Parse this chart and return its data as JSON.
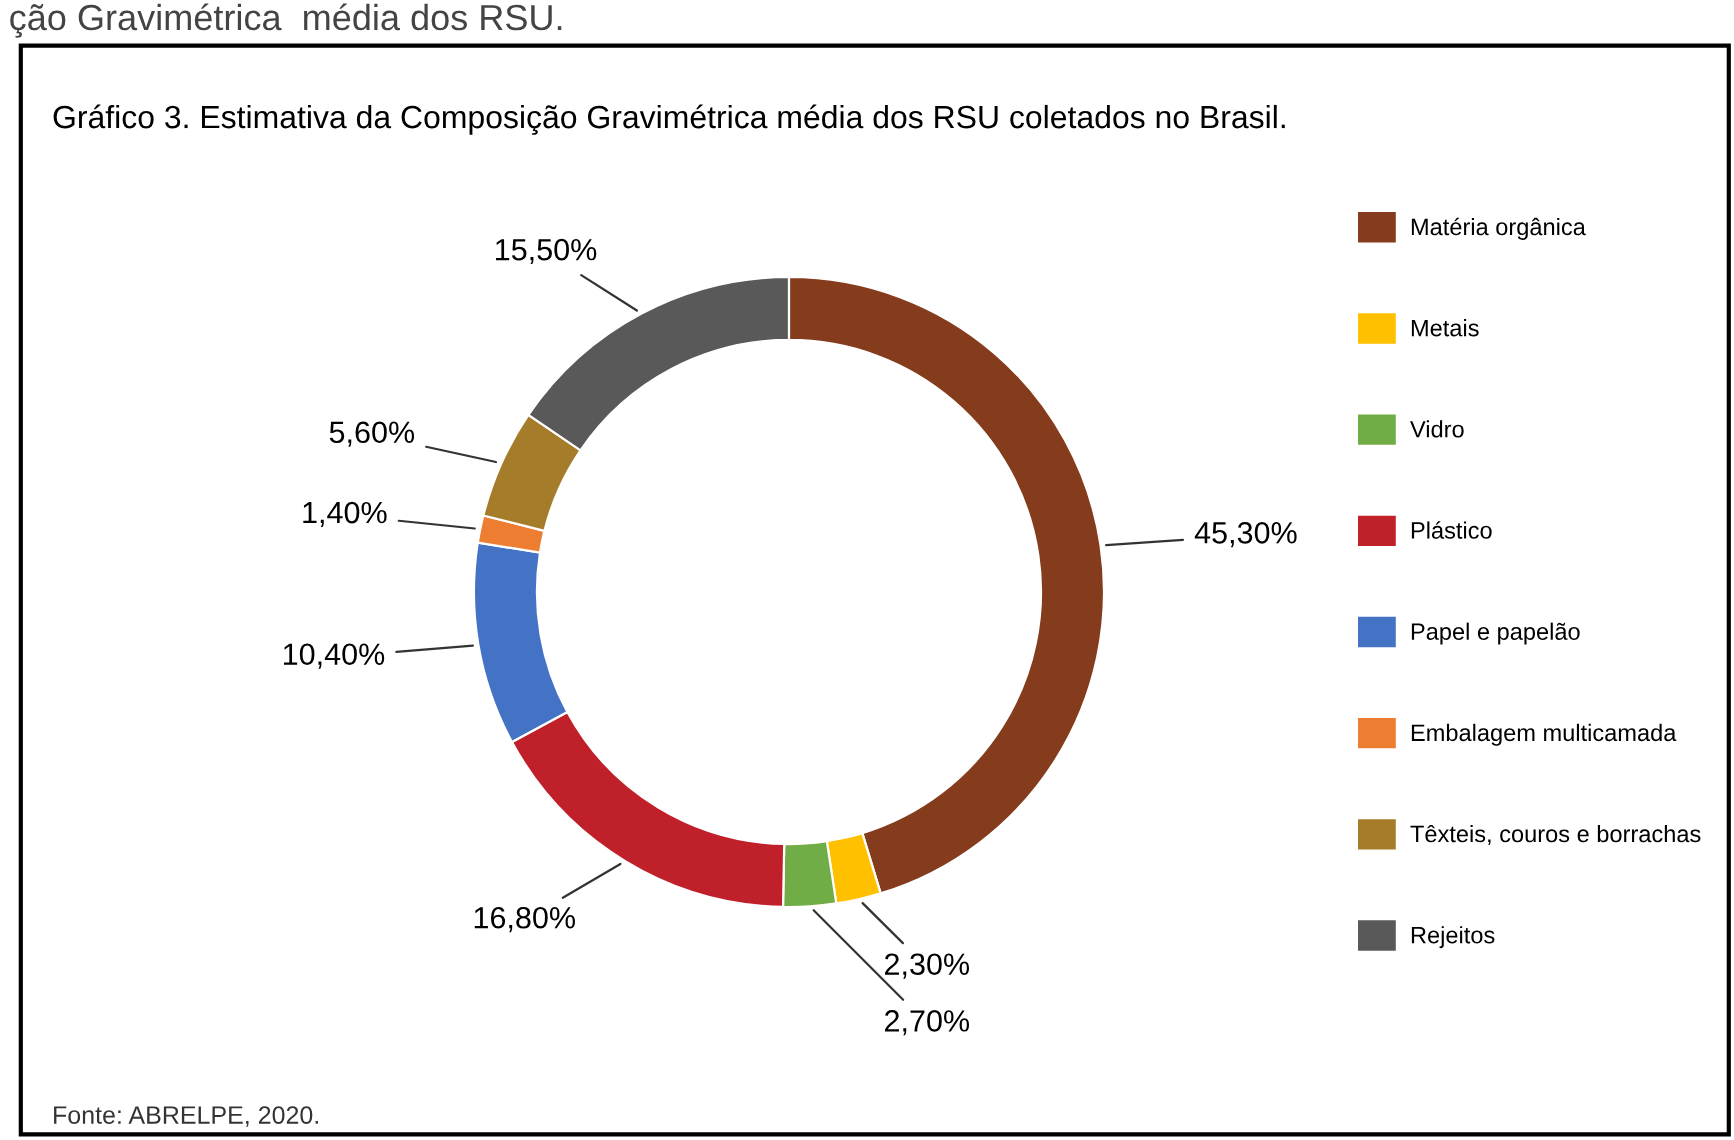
{
  "chart_data": {
    "type": "donut",
    "title": "Gráfico 3. Estimativa da Composição Gravimétrica média dos RSU coletados no Brasil.",
    "categories": [
      "Matéria orgânica",
      "Metais",
      "Vidro",
      "Plástico",
      "Papel e papelão",
      "Embalagem multicamada",
      "Têxteis, couros e borrachas",
      "Rejeitos"
    ],
    "values": [
      45.3,
      2.3,
      2.7,
      16.8,
      10.4,
      1.4,
      5.6,
      15.5
    ],
    "value_labels": [
      "45,30%",
      "2,30%",
      "2,70%",
      "16,80%",
      "10,40%",
      "1,40%",
      "5,60%",
      "15,50%"
    ],
    "colors": [
      "#843c1c",
      "#ffc000",
      "#70ad47",
      "#c0202a",
      "#4472c4",
      "#ed7d31",
      "#a57c2a",
      "#595959"
    ],
    "legend": "right",
    "annotations": [
      "ção Gravimétrica  média dos RSU.",
      "Fonte: ABRELPE, 2020."
    ]
  }
}
